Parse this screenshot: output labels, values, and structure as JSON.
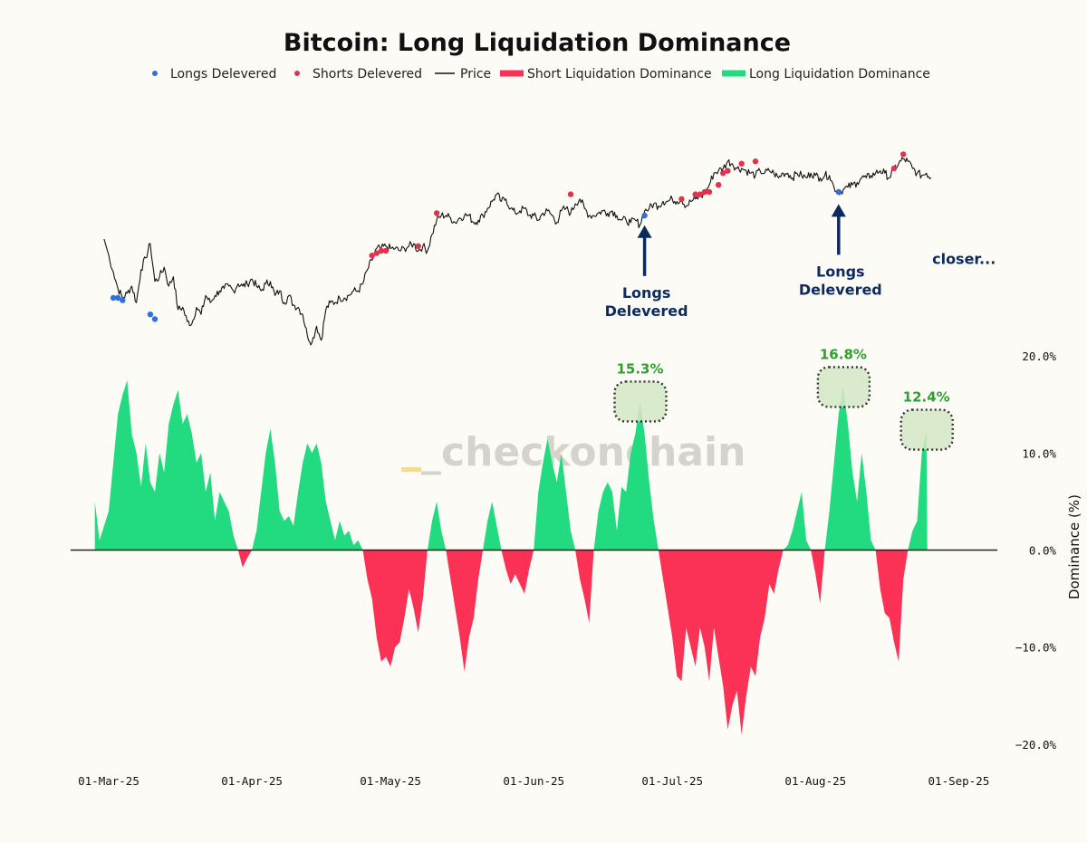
{
  "chart_data": {
    "type": "area",
    "title": "Bitcoin: Long Liquidation Dominance",
    "legend": {
      "placement": "top-center",
      "entries": [
        {
          "label": "Longs Delevered",
          "kind": "dot",
          "color": "#2f6fde"
        },
        {
          "label": "Shorts Delevered",
          "kind": "dot",
          "color": "#e0334f"
        },
        {
          "label": "Price",
          "kind": "line",
          "color": "#111111"
        },
        {
          "label": "Short Liquidation Dominance",
          "kind": "bar",
          "color": "#fb3155"
        },
        {
          "label": "Long Liquidation Dominance",
          "kind": "bar",
          "color": "#22db80"
        }
      ]
    },
    "x_axis": {
      "ticks": [
        "01-Mar-25",
        "01-Apr-25",
        "01-May-25",
        "01-Jun-25",
        "01-Jul-25",
        "01-Aug-25",
        "01-Sep-25"
      ],
      "tick_day_index": [
        0,
        31,
        61,
        92,
        122,
        153,
        184
      ],
      "range_day_index": [
        -3,
        200
      ]
    },
    "y_axis": {
      "label": "Dominance (%)",
      "ticks": [
        "20.0%",
        "10.0%",
        "0.0%",
        "−10.0%",
        "−20.0%"
      ],
      "tick_values": [
        20,
        10,
        0,
        -10,
        -20
      ],
      "range": [
        -24,
        22
      ],
      "placement": "right"
    },
    "dominance_series": [
      [
        -3,
        5
      ],
      [
        -2,
        1
      ],
      [
        0,
        4
      ],
      [
        1,
        9
      ],
      [
        2,
        14
      ],
      [
        3,
        16
      ],
      [
        4,
        17.5
      ],
      [
        5,
        12
      ],
      [
        6,
        10
      ],
      [
        7,
        6.5
      ],
      [
        8,
        11
      ],
      [
        9,
        7
      ],
      [
        10,
        6
      ],
      [
        11,
        10
      ],
      [
        12,
        8
      ],
      [
        13,
        13
      ],
      [
        14,
        15
      ],
      [
        15,
        16.5
      ],
      [
        16,
        13
      ],
      [
        17,
        14
      ],
      [
        18,
        12
      ],
      [
        19,
        9
      ],
      [
        20,
        10
      ],
      [
        21,
        6
      ],
      [
        22,
        8
      ],
      [
        23,
        3
      ],
      [
        24,
        6
      ],
      [
        25,
        5
      ],
      [
        26,
        4
      ],
      [
        27,
        1.5
      ],
      [
        28,
        0
      ],
      [
        29,
        -1.8
      ],
      [
        30,
        -0.8
      ],
      [
        31,
        0
      ],
      [
        32,
        2
      ],
      [
        33,
        6
      ],
      [
        34,
        10
      ],
      [
        35,
        12.5
      ],
      [
        36,
        9
      ],
      [
        37,
        4
      ],
      [
        38,
        3
      ],
      [
        39,
        3.5
      ],
      [
        40,
        2.5
      ],
      [
        41,
        6
      ],
      [
        42,
        9
      ],
      [
        43,
        11
      ],
      [
        44,
        10
      ],
      [
        45,
        11
      ],
      [
        46,
        9
      ],
      [
        47,
        5
      ],
      [
        48,
        3
      ],
      [
        49,
        1
      ],
      [
        50,
        3
      ],
      [
        51,
        1.5
      ],
      [
        52,
        2
      ],
      [
        53,
        0.5
      ],
      [
        54,
        1
      ],
      [
        55,
        0
      ],
      [
        56,
        -3
      ],
      [
        57,
        -5
      ],
      [
        58,
        -9
      ],
      [
        59,
        -11.5
      ],
      [
        60,
        -11
      ],
      [
        61,
        -12
      ],
      [
        62,
        -10
      ],
      [
        63,
        -9.5
      ],
      [
        64,
        -7
      ],
      [
        65,
        -4
      ],
      [
        66,
        -6
      ],
      [
        67,
        -8.5
      ],
      [
        68,
        -5
      ],
      [
        69,
        0
      ],
      [
        70,
        3
      ],
      [
        71,
        5
      ],
      [
        72,
        2
      ],
      [
        73,
        0
      ],
      [
        74,
        -3
      ],
      [
        75,
        -6
      ],
      [
        76,
        -9
      ],
      [
        77,
        -12.5
      ],
      [
        78,
        -9
      ],
      [
        79,
        -7
      ],
      [
        80,
        -3
      ],
      [
        81,
        0
      ],
      [
        82,
        3
      ],
      [
        83,
        5
      ],
      [
        84,
        2.5
      ],
      [
        85,
        0
      ],
      [
        86,
        -2
      ],
      [
        87,
        -3.5
      ],
      [
        88,
        -2.5
      ],
      [
        89,
        -3.5
      ],
      [
        90,
        -4.5
      ],
      [
        91,
        -2
      ],
      [
        92,
        0
      ],
      [
        93,
        6
      ],
      [
        94,
        9
      ],
      [
        95,
        11.5
      ],
      [
        96,
        9
      ],
      [
        97,
        7
      ],
      [
        98,
        10
      ],
      [
        99,
        6
      ],
      [
        100,
        2
      ],
      [
        101,
        0
      ],
      [
        102,
        -3
      ],
      [
        103,
        -5
      ],
      [
        104,
        -7.5
      ],
      [
        105,
        0
      ],
      [
        106,
        4
      ],
      [
        107,
        6
      ],
      [
        108,
        7
      ],
      [
        109,
        6
      ],
      [
        110,
        2
      ],
      [
        111,
        6.5
      ],
      [
        112,
        6
      ],
      [
        113,
        10
      ],
      [
        114,
        12
      ],
      [
        115,
        15.3
      ],
      [
        116,
        12
      ],
      [
        117,
        7
      ],
      [
        118,
        3
      ],
      [
        119,
        0
      ],
      [
        120,
        -3
      ],
      [
        121,
        -6
      ],
      [
        122,
        -9
      ],
      [
        123,
        -13
      ],
      [
        124,
        -13.5
      ],
      [
        125,
        -8
      ],
      [
        126,
        -10
      ],
      [
        127,
        -12
      ],
      [
        128,
        -8
      ],
      [
        129,
        -10
      ],
      [
        130,
        -13.5
      ],
      [
        131,
        -8
      ],
      [
        132,
        -11
      ],
      [
        133,
        -14
      ],
      [
        134,
        -18.5
      ],
      [
        135,
        -16
      ],
      [
        136,
        -14.5
      ],
      [
        137,
        -19
      ],
      [
        138,
        -15
      ],
      [
        139,
        -12
      ],
      [
        140,
        -13
      ],
      [
        141,
        -9
      ],
      [
        142,
        -7
      ],
      [
        143,
        -3.5
      ],
      [
        144,
        -4.5
      ],
      [
        145,
        -2
      ],
      [
        146,
        0
      ],
      [
        147,
        0.5
      ],
      [
        148,
        2
      ],
      [
        149,
        4
      ],
      [
        150,
        6
      ],
      [
        151,
        1
      ],
      [
        152,
        0
      ],
      [
        153,
        -2.5
      ],
      [
        154,
        -5.5
      ],
      [
        155,
        0
      ],
      [
        156,
        4
      ],
      [
        157,
        9
      ],
      [
        158,
        14
      ],
      [
        159,
        16.8
      ],
      [
        160,
        13
      ],
      [
        161,
        8
      ],
      [
        162,
        5
      ],
      [
        163,
        10
      ],
      [
        164,
        6
      ],
      [
        165,
        1
      ],
      [
        166,
        0
      ],
      [
        167,
        -4
      ],
      [
        168,
        -6.5
      ],
      [
        169,
        -7
      ],
      [
        170,
        -9.5
      ],
      [
        171,
        -11.5
      ],
      [
        172,
        -3
      ],
      [
        173,
        0
      ],
      [
        174,
        2
      ],
      [
        175,
        3
      ],
      [
        176,
        10
      ],
      [
        177,
        12.4
      ],
      [
        177.2,
        0
      ]
    ],
    "price_series": [
      [
        -1,
        0.6
      ],
      [
        1,
        0.46
      ],
      [
        2,
        0.39
      ],
      [
        3,
        0.35
      ],
      [
        4,
        0.37
      ],
      [
        5,
        0.4
      ],
      [
        6,
        0.33
      ],
      [
        7,
        0.47
      ],
      [
        8,
        0.52
      ],
      [
        9,
        0.58
      ],
      [
        10,
        0.42
      ],
      [
        11,
        0.44
      ],
      [
        12,
        0.48
      ],
      [
        13,
        0.4
      ],
      [
        14,
        0.44
      ],
      [
        15,
        0.3
      ],
      [
        16,
        0.31
      ],
      [
        17,
        0.25
      ],
      [
        18,
        0.24
      ],
      [
        19,
        0.31
      ],
      [
        20,
        0.28
      ],
      [
        21,
        0.36
      ],
      [
        22,
        0.33
      ],
      [
        23,
        0.36
      ],
      [
        24,
        0.38
      ],
      [
        25,
        0.39
      ],
      [
        26,
        0.4
      ],
      [
        27,
        0.38
      ],
      [
        28,
        0.41
      ],
      [
        29,
        0.4
      ],
      [
        30,
        0.41
      ],
      [
        31,
        0.43
      ],
      [
        32,
        0.4
      ],
      [
        33,
        0.38
      ],
      [
        34,
        0.41
      ],
      [
        35,
        0.42
      ],
      [
        36,
        0.36
      ],
      [
        37,
        0.38
      ],
      [
        38,
        0.33
      ],
      [
        39,
        0.36
      ],
      [
        40,
        0.32
      ],
      [
        41,
        0.31
      ],
      [
        42,
        0.28
      ],
      [
        43,
        0.19
      ],
      [
        44,
        0.16
      ],
      [
        45,
        0.23
      ],
      [
        46,
        0.17
      ],
      [
        47,
        0.3
      ],
      [
        48,
        0.33
      ],
      [
        49,
        0.33
      ],
      [
        50,
        0.35
      ],
      [
        51,
        0.35
      ],
      [
        52,
        0.36
      ],
      [
        53,
        0.38
      ],
      [
        54,
        0.38
      ],
      [
        55,
        0.41
      ],
      [
        56,
        0.47
      ],
      [
        57,
        0.51
      ],
      [
        58,
        0.56
      ],
      [
        59,
        0.56
      ],
      [
        60,
        0.57
      ],
      [
        61,
        0.56
      ],
      [
        62,
        0.56
      ],
      [
        63,
        0.55
      ],
      [
        64,
        0.56
      ],
      [
        65,
        0.57
      ],
      [
        66,
        0.58
      ],
      [
        67,
        0.55
      ],
      [
        68,
        0.57
      ],
      [
        69,
        0.55
      ],
      [
        70,
        0.62
      ],
      [
        71,
        0.68
      ],
      [
        72,
        0.7
      ],
      [
        73,
        0.7
      ],
      [
        74,
        0.69
      ],
      [
        75,
        0.67
      ],
      [
        76,
        0.69
      ],
      [
        77,
        0.7
      ],
      [
        78,
        0.7
      ],
      [
        79,
        0.67
      ],
      [
        80,
        0.68
      ],
      [
        81,
        0.7
      ],
      [
        82,
        0.73
      ],
      [
        83,
        0.76
      ],
      [
        84,
        0.79
      ],
      [
        85,
        0.76
      ],
      [
        86,
        0.77
      ],
      [
        87,
        0.73
      ],
      [
        88,
        0.71
      ],
      [
        89,
        0.72
      ],
      [
        90,
        0.73
      ],
      [
        91,
        0.7
      ],
      [
        92,
        0.7
      ],
      [
        93,
        0.68
      ],
      [
        94,
        0.71
      ],
      [
        95,
        0.72
      ],
      [
        96,
        0.7
      ],
      [
        97,
        0.67
      ],
      [
        98,
        0.72
      ],
      [
        99,
        0.73
      ],
      [
        100,
        0.71
      ],
      [
        101,
        0.75
      ],
      [
        102,
        0.77
      ],
      [
        103,
        0.73
      ],
      [
        104,
        0.7
      ],
      [
        105,
        0.7
      ],
      [
        106,
        0.71
      ],
      [
        107,
        0.72
      ],
      [
        108,
        0.71
      ],
      [
        109,
        0.72
      ],
      [
        110,
        0.7
      ],
      [
        111,
        0.68
      ],
      [
        112,
        0.68
      ],
      [
        113,
        0.67
      ],
      [
        114,
        0.68
      ],
      [
        115,
        0.66
      ],
      [
        116,
        0.72
      ],
      [
        117,
        0.73
      ],
      [
        118,
        0.75
      ],
      [
        119,
        0.74
      ],
      [
        120,
        0.76
      ],
      [
        121,
        0.76
      ],
      [
        122,
        0.77
      ],
      [
        123,
        0.76
      ],
      [
        124,
        0.77
      ],
      [
        125,
        0.74
      ],
      [
        126,
        0.76
      ],
      [
        127,
        0.77
      ],
      [
        128,
        0.78
      ],
      [
        129,
        0.79
      ],
      [
        130,
        0.83
      ],
      [
        131,
        0.88
      ],
      [
        132,
        0.89
      ],
      [
        133,
        0.9
      ],
      [
        134,
        0.93
      ],
      [
        135,
        0.92
      ],
      [
        136,
        0.9
      ],
      [
        137,
        0.9
      ],
      [
        138,
        0.89
      ],
      [
        139,
        0.88
      ],
      [
        140,
        0.87
      ],
      [
        141,
        0.89
      ],
      [
        142,
        0.88
      ],
      [
        143,
        0.89
      ],
      [
        144,
        0.88
      ],
      [
        145,
        0.86
      ],
      [
        146,
        0.88
      ],
      [
        147,
        0.88
      ],
      [
        148,
        0.86
      ],
      [
        149,
        0.88
      ],
      [
        150,
        0.87
      ],
      [
        151,
        0.86
      ],
      [
        152,
        0.88
      ],
      [
        153,
        0.87
      ],
      [
        154,
        0.86
      ],
      [
        155,
        0.87
      ],
      [
        156,
        0.87
      ],
      [
        157,
        0.82
      ],
      [
        158,
        0.8
      ],
      [
        159,
        0.81
      ],
      [
        160,
        0.82
      ],
      [
        161,
        0.83
      ],
      [
        162,
        0.84
      ],
      [
        163,
        0.86
      ],
      [
        164,
        0.86
      ],
      [
        165,
        0.87
      ],
      [
        166,
        0.88
      ],
      [
        167,
        0.89
      ],
      [
        168,
        0.88
      ],
      [
        169,
        0.86
      ],
      [
        170,
        0.9
      ],
      [
        171,
        0.92
      ],
      [
        172,
        0.94
      ],
      [
        173,
        0.93
      ],
      [
        174,
        0.9
      ],
      [
        175,
        0.88
      ],
      [
        176,
        0.87
      ],
      [
        177,
        0.88
      ],
      [
        178,
        0.86
      ]
    ],
    "longs_delevered_points": [
      [
        1,
        0.35
      ],
      [
        2,
        0.35
      ],
      [
        3,
        0.34
      ],
      [
        9,
        0.28
      ],
      [
        10,
        0.26
      ],
      [
        116,
        0.7
      ],
      [
        158,
        0.8
      ]
    ],
    "shorts_delevered_points": [
      [
        57,
        0.53
      ],
      [
        58,
        0.54
      ],
      [
        59,
        0.55
      ],
      [
        60,
        0.55
      ],
      [
        67,
        0.57
      ],
      [
        71,
        0.71
      ],
      [
        100,
        0.79
      ],
      [
        124,
        0.77
      ],
      [
        127,
        0.79
      ],
      [
        128,
        0.79
      ],
      [
        129,
        0.8
      ],
      [
        130,
        0.8
      ],
      [
        132,
        0.83
      ],
      [
        133,
        0.88
      ],
      [
        134,
        0.89
      ],
      [
        137,
        0.92
      ],
      [
        140,
        0.93
      ],
      [
        170,
        0.9
      ],
      [
        172,
        0.96
      ]
    ],
    "annotations": [
      {
        "text": [
          "Longs",
          "Delevered"
        ],
        "day": 116,
        "target": "price",
        "target_value": 0.72
      },
      {
        "text": [
          "Longs",
          "Delevered"
        ],
        "day": 158,
        "target": "price",
        "target_value": 0.81
      },
      {
        "text": [
          "closer..."
        ],
        "day": 182,
        "target": "label",
        "target_value": 0.79
      }
    ],
    "peak_labels": [
      {
        "label": "15.3%",
        "day": 115,
        "value": 15.3
      },
      {
        "label": "16.8%",
        "day": 159,
        "value": 16.8
      },
      {
        "label": "12.4%",
        "day": 177,
        "value": 12.4
      }
    ],
    "colors": {
      "long_area": "#22db80",
      "short_area": "#fb3155",
      "price": "#111111",
      "peak_box": "#d5e9c6",
      "annotation": "#0d2a5e"
    },
    "watermark": "_checkonchain",
    "grid": false
  }
}
